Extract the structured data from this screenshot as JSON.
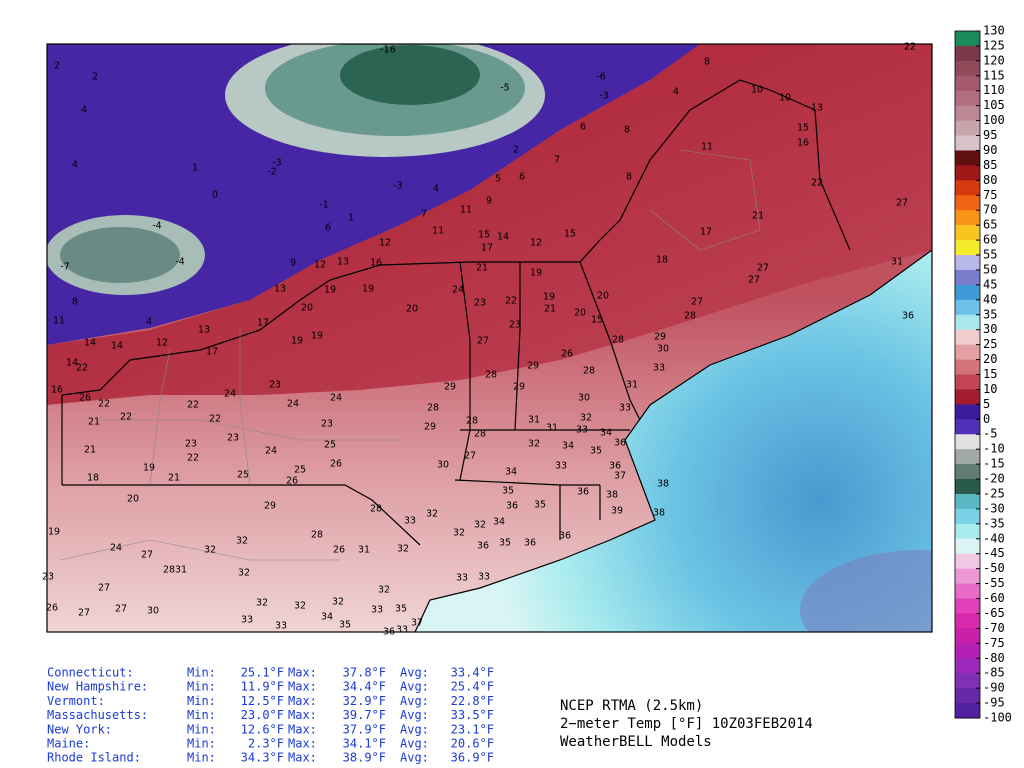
{
  "stats": {
    "min_label": "Min:",
    "max_label": "Max:",
    "avg_label": "Avg:",
    "rows": [
      {
        "state": "Connecticut:",
        "min": "25.1°F",
        "max": "37.8°F",
        "avg": "33.4°F"
      },
      {
        "state": "New Hampshire:",
        "min": "11.9°F",
        "max": "34.4°F",
        "avg": "25.4°F"
      },
      {
        "state": "Vermont:",
        "min": "12.5°F",
        "max": "32.9°F",
        "avg": "22.8°F"
      },
      {
        "state": "Massachusetts:",
        "min": "23.0°F",
        "max": "39.7°F",
        "avg": "33.5°F"
      },
      {
        "state": "New York:",
        "min": "12.6°F",
        "max": "37.9°F",
        "avg": "23.1°F"
      },
      {
        "state": "Maine:",
        "min": "2.3°F",
        "max": "34.1°F",
        "avg": "20.6°F"
      },
      {
        "state": "Rhode Island:",
        "min": "34.3°F",
        "max": "38.9°F",
        "avg": "36.9°F"
      }
    ]
  },
  "caption": {
    "line1": "NCEP RTMA (2.5km)",
    "line2": "2−meter Temp [°F] 10Z03FEB2014",
    "line3": "WeatherBELL Models"
  },
  "colorbar": {
    "ticks": [
      130,
      125,
      120,
      115,
      110,
      105,
      100,
      95,
      90,
      85,
      80,
      75,
      70,
      65,
      60,
      55,
      50,
      45,
      40,
      35,
      30,
      25,
      20,
      15,
      10,
      5,
      0,
      -5,
      -10,
      -15,
      -20,
      -25,
      -30,
      -35,
      -40,
      -45,
      -50,
      -55,
      -60,
      -65,
      -70,
      -75,
      -80,
      -85,
      -90,
      -95,
      -100
    ]
  },
  "map": {
    "stations": [
      -16,
      2,
      2,
      -5,
      -6,
      -3,
      8,
      22,
      10,
      10,
      13,
      15,
      16,
      4,
      4,
      6,
      8,
      2,
      7,
      8,
      4,
      1,
      0,
      -3,
      -2,
      -3,
      4,
      5,
      6,
      11,
      22,
      -1,
      9,
      7,
      11,
      21,
      27,
      -4,
      6,
      1,
      12,
      11,
      17,
      15,
      14,
      12,
      15,
      -7,
      -4,
      9,
      12,
      13,
      17,
      18,
      27,
      16,
      21,
      19,
      31,
      13,
      19,
      19,
      24,
      23,
      22,
      19,
      20,
      27,
      27,
      8,
      11,
      20,
      20,
      21,
      20,
      15,
      28,
      36,
      4,
      17,
      23,
      13,
      12,
      14,
      14,
      19,
      19,
      27,
      28,
      29,
      30,
      17,
      14,
      22,
      26,
      29,
      28,
      28,
      33,
      31,
      29,
      29,
      23,
      24,
      16,
      26,
      22,
      22,
      24,
      24,
      30,
      33,
      28,
      32,
      31,
      31,
      22,
      21,
      22,
      23,
      29,
      28,
      33,
      34,
      25,
      23,
      23,
      28,
      32,
      34,
      36,
      21,
      22,
      24,
      27,
      35,
      33,
      36,
      26,
      30,
      34,
      19,
      21,
      25,
      25,
      37,
      18,
      26,
      38,
      35,
      36,
      20,
      29,
      28,
      36,
      35,
      38,
      39,
      38,
      33,
      32,
      34,
      32,
      19,
      32,
      28,
      32,
      24,
      27,
      32,
      26,
      31,
      32,
      36,
      35,
      36,
      36,
      23,
      27,
      28,
      31,
      32,
      33,
      33,
      32,
      32,
      32,
      32,
      33,
      35,
      26,
      27,
      27,
      30,
      33,
      33,
      34,
      35,
      37,
      36,
      33
    ]
  }
}
